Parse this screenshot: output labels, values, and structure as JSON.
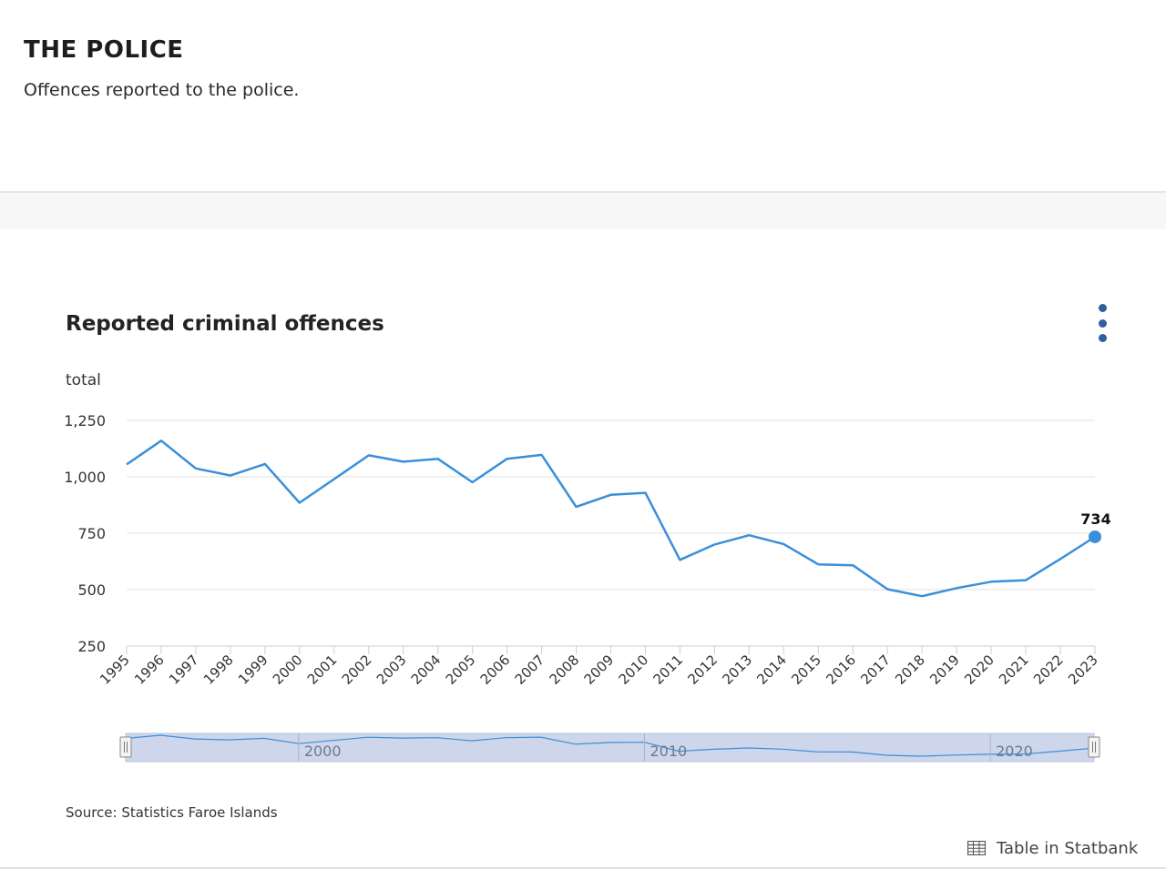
{
  "page": {
    "heading": "THE POLICE",
    "subtitle": "Offences reported to the police."
  },
  "menu": {
    "icon": "more-vertical-icon"
  },
  "footer": {
    "source": "Source: Statistics Faroe Islands",
    "statbank_label": "Table in Statbank",
    "statbank_icon": "table-icon"
  },
  "colors": {
    "line": "#3b8fd9",
    "navigator_fill": "#cdd6ea",
    "grid": "#e0e0e0",
    "menu_dots": "#2f5f9e"
  },
  "chart_data": {
    "type": "line",
    "title": "Reported criminal offences",
    "ylabel": "total",
    "xlabel": "",
    "ylim": [
      250,
      1250
    ],
    "yticks": [
      250,
      500,
      750,
      1000,
      1250
    ],
    "ytick_labels": [
      "250",
      "500",
      "750",
      "1,000",
      "1,250"
    ],
    "categories": [
      "1995",
      "1996",
      "1997",
      "1998",
      "1999",
      "2000",
      "2001",
      "2002",
      "2003",
      "2004",
      "2005",
      "2006",
      "2007",
      "2008",
      "2009",
      "2010",
      "2011",
      "2012",
      "2013",
      "2014",
      "2015",
      "2016",
      "2017",
      "2018",
      "2019",
      "2020",
      "2021",
      "2022",
      "2023"
    ],
    "series": [
      {
        "name": "Reported criminal offences",
        "values": [
          1055,
          1160,
          1037,
          1006,
          1057,
          885,
          990,
          1095,
          1067,
          1080,
          976,
          1080,
          1097,
          867,
          920,
          929,
          632,
          700,
          741,
          702,
          612,
          608,
          502,
          471,
          507,
          535,
          542,
          636,
          734
        ]
      }
    ],
    "highlight": {
      "category": "2023",
      "label": "734"
    },
    "navigator": {
      "labels": [
        "2000",
        "2010",
        "2020"
      ]
    },
    "grid": true,
    "legend": "none"
  }
}
